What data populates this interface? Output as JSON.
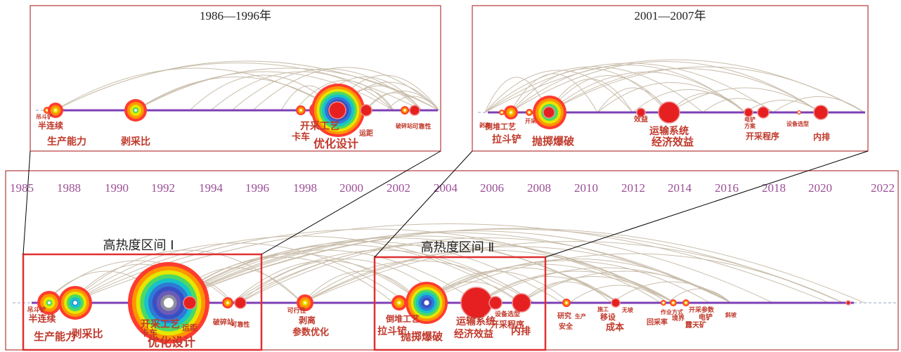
{
  "chart_data": {
    "type": "timeline",
    "x_axis": {
      "ticks": [
        "1985",
        "1988",
        "1990",
        "1992",
        "1994",
        "1996",
        "1998",
        "2000",
        "2002",
        "2004",
        "2006",
        "2008",
        "2010",
        "2012",
        "2014",
        "2016",
        "2018",
        "2020",
        "2022"
      ]
    },
    "highlight_bands": [
      {
        "label": "高热度区间 Ⅰ"
      },
      {
        "label": "高热度区间 Ⅱ"
      }
    ],
    "panels": [
      {
        "title": "1986—1996年",
        "keywords": [
          "吊斗铲",
          "半连续",
          "生产能力",
          "剥采比",
          "卡车",
          "开采工艺",
          "优化设计",
          "运距",
          "可靠性",
          "破碎站"
        ]
      },
      {
        "title": "2001—2007年",
        "keywords": [
          "剥离",
          "倒堆工艺",
          "拉斗铲",
          "开采",
          "抛掷爆破",
          "效益",
          "运输系统",
          "经济效益",
          "电铲",
          "方案",
          "开采程序",
          "设备选型",
          "内排"
        ]
      }
    ],
    "main_keywords": [
      "吊斗铲",
      "半连续",
      "生产能力",
      "剥采比",
      "开采工艺",
      "卡车",
      "优化设计",
      "运距",
      "破碎站",
      "可靠性",
      "可行性",
      "剥离",
      "参数优化",
      "倒堆工艺",
      "拉斗铲",
      "抛掷爆破",
      "运输系统",
      "经济效益",
      "设备选型",
      "开采程序",
      "内排",
      "研究",
      "安全",
      "生产",
      "施工",
      "移设",
      "成本",
      "无坡",
      "回采率",
      "作业方式",
      "境界",
      "开采参数",
      "电铲",
      "露天矿",
      "斜坡"
    ],
    "grid": false
  }
}
